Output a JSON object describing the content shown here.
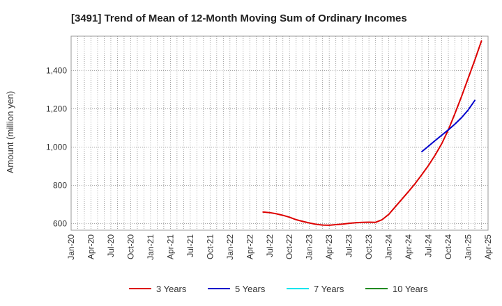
{
  "chart_data": {
    "type": "line",
    "title": "[3491]  Trend of Mean of 12-Month Moving Sum of Ordinary Incomes",
    "xlabel": "",
    "ylabel": "Amount (million yen)",
    "ylim": [
      565,
      1580
    ],
    "yticks": [
      600,
      800,
      1000,
      1200,
      1400
    ],
    "ytick_labels": [
      "600",
      "800",
      "1,000",
      "1,200",
      "1,400"
    ],
    "xlim": [
      "Jan-20",
      "Apr-25"
    ],
    "xtick_labels": [
      "Jan-20",
      "Apr-20",
      "Jul-20",
      "Oct-20",
      "Jan-21",
      "Apr-21",
      "Jul-21",
      "Oct-21",
      "Jan-22",
      "Apr-22",
      "Jul-22",
      "Oct-22",
      "Jan-23",
      "Apr-23",
      "Jul-23",
      "Oct-23",
      "Jan-24",
      "Apr-24",
      "Jul-24",
      "Oct-24",
      "Jan-25",
      "Apr-25"
    ],
    "grid": true,
    "legend_position": "bottom",
    "series": [
      {
        "name": "3 Years",
        "color": "#dd0000",
        "points": [
          [
            "Jun-22",
            660
          ],
          [
            "Jul-22",
            657
          ],
          [
            "Aug-22",
            651
          ],
          [
            "Sep-22",
            643
          ],
          [
            "Oct-22",
            633
          ],
          [
            "Nov-22",
            620
          ],
          [
            "Dec-22",
            611
          ],
          [
            "Jan-23",
            603
          ],
          [
            "Feb-23",
            596
          ],
          [
            "Mar-23",
            592
          ],
          [
            "Apr-23",
            591
          ],
          [
            "May-23",
            594
          ],
          [
            "Jun-23",
            597
          ],
          [
            "Jul-23",
            601
          ],
          [
            "Aug-23",
            604
          ],
          [
            "Sep-23",
            606
          ],
          [
            "Oct-23",
            607
          ],
          [
            "Nov-23",
            606
          ],
          [
            "Dec-23",
            620
          ],
          [
            "Jan-24",
            648
          ],
          [
            "Feb-24",
            688
          ],
          [
            "Mar-24",
            728
          ],
          [
            "Apr-24",
            768
          ],
          [
            "May-24",
            810
          ],
          [
            "Jun-24",
            856
          ],
          [
            "Jul-24",
            904
          ],
          [
            "Aug-24",
            958
          ],
          [
            "Sep-24",
            1018
          ],
          [
            "Oct-24",
            1090
          ],
          [
            "Nov-24",
            1175
          ],
          [
            "Dec-24",
            1265
          ],
          [
            "Jan-25",
            1360
          ],
          [
            "Feb-25",
            1455
          ],
          [
            "Mar-25",
            1555
          ]
        ]
      },
      {
        "name": "5 Years",
        "color": "#0000cc",
        "points": [
          [
            "Jun-24",
            976
          ],
          [
            "Jul-24",
            1005
          ],
          [
            "Aug-24",
            1034
          ],
          [
            "Sep-24",
            1062
          ],
          [
            "Oct-24",
            1090
          ],
          [
            "Nov-24",
            1120
          ],
          [
            "Dec-24",
            1154
          ],
          [
            "Jan-25",
            1194
          ],
          [
            "Feb-25",
            1244
          ]
        ]
      },
      {
        "name": "7 Years",
        "color": "#00e5ee",
        "points": []
      },
      {
        "name": "10 Years",
        "color": "#228b22",
        "points": []
      }
    ]
  }
}
